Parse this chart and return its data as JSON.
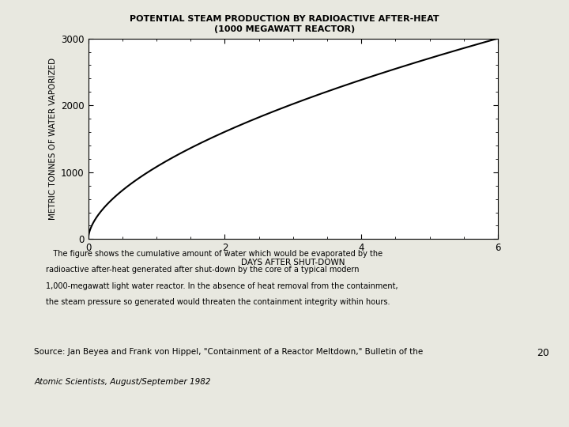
{
  "title_line1": "POTENTIAL STEAM PRODUCTION BY RADIOACTIVE AFTER-HEAT",
  "title_line2": "(1000 MEGAWATT REACTOR)",
  "xlabel": "DAYS AFTER SHUT-DOWN",
  "ylabel": "METRIC TONNES OF WATER VAPORIZED",
  "xlim": [
    0,
    6
  ],
  "ylim": [
    0,
    3000
  ],
  "xticks": [
    0,
    2,
    4,
    6
  ],
  "yticks": [
    0,
    1000,
    2000,
    3000
  ],
  "curve_color": "#000000",
  "curve_linewidth": 1.5,
  "background_color": "#e8e8e0",
  "plot_bg_color": "#ffffff",
  "caption_line1": "   The figure shows the cumulative amount of water which would be evaporated by the",
  "caption_line2": "radioactive after-heat generated after shut-down by the core of a typical modern",
  "caption_line3": "1,000-megawatt light water reactor. In the absence of heat removal from the containment,",
  "caption_line4": "the steam pressure so generated would threaten the containment integrity within hours.",
  "source_line1": "Source: Jan Beyea and Frank von Hippel, \"Containment of a Reactor Meltdown,\" Bulletin of the",
  "source_line2": "Atomic Scientists, August/September 1982",
  "page_number": "20",
  "title_fontsize": 8.0,
  "tick_fontsize": 8.5,
  "label_fontsize": 7.5,
  "caption_fontsize": 7.0,
  "source_fontsize": 7.5
}
